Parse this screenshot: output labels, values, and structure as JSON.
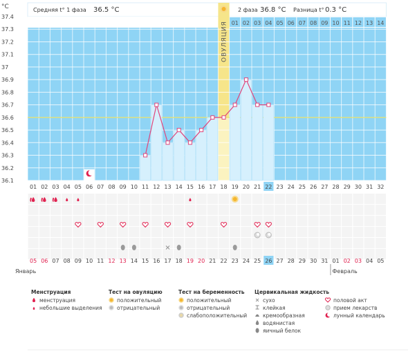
{
  "chart_data": {
    "type": "bar",
    "unit_label": "°C",
    "ylim": [
      36.1,
      37.4
    ],
    "y_ticks": [
      "37.4",
      "37.3",
      "37.2",
      "37.1",
      "37",
      "36.9",
      "36.8",
      "36.7",
      "36.6",
      "36.5",
      "36.4",
      "36.3",
      "36.2",
      "36.1"
    ],
    "y_tick_values": [
      37.4,
      37.3,
      37.2,
      37.1,
      37.0,
      36.9,
      36.8,
      36.7,
      36.6,
      36.5,
      36.4,
      36.3,
      36.2,
      36.1
    ],
    "phase1": {
      "label": "Средняя t° 1 фаза",
      "value": "36.5 °C"
    },
    "phase2": {
      "label": "2 фаза",
      "value": "36.8 °C"
    },
    "difference": {
      "label": "Разница t°",
      "value": "0.3 °C"
    },
    "ovulation_label": "ОВУЛЯЦИЯ",
    "ovulation_day": 18,
    "average_line": 36.6,
    "cycle_days": [
      "01",
      "02",
      "03",
      "04",
      "05",
      "06",
      "07",
      "08",
      "09",
      "10",
      "11",
      "12",
      "13",
      "14",
      "15",
      "16",
      "17",
      "18",
      "19",
      "20",
      "21",
      "22",
      "23",
      "24",
      "25",
      "26",
      "27",
      "28",
      "29",
      "30",
      "31",
      "32"
    ],
    "post_ovulation_days": [
      "01",
      "02",
      "03",
      "04",
      "05",
      "06",
      "07",
      "08",
      "09",
      "10",
      "11",
      "12",
      "13",
      "14"
    ],
    "temperatures": [
      {
        "day": 11,
        "value": 36.3
      },
      {
        "day": 12,
        "value": 36.7
      },
      {
        "day": 13,
        "value": 36.4
      },
      {
        "day": 14,
        "value": 36.5
      },
      {
        "day": 15,
        "value": 36.4
      },
      {
        "day": 16,
        "value": 36.5
      },
      {
        "day": 17,
        "value": 36.6
      },
      {
        "day": 18,
        "value": 36.6
      },
      {
        "day": 19,
        "value": 36.7
      },
      {
        "day": 20,
        "value": 36.9
      },
      {
        "day": 21,
        "value": 36.7
      },
      {
        "day": 22,
        "value": 36.7
      }
    ],
    "moon_day": 6,
    "current_day": 22,
    "calendar_dates": [
      "05",
      "06",
      "07",
      "08",
      "09",
      "10",
      "11",
      "12",
      "13",
      "14",
      "15",
      "16",
      "17",
      "18",
      "19",
      "20",
      "21",
      "22",
      "23",
      "24",
      "25",
      "26",
      "27",
      "28",
      "29",
      "30",
      "31",
      "01",
      "02",
      "03",
      "04",
      "05"
    ],
    "calendar_date_colors": [
      "red",
      "red",
      "gray",
      "gray",
      "gray",
      "gray",
      "gray",
      "red",
      "red",
      "gray",
      "gray",
      "gray",
      "gray",
      "gray",
      "red",
      "red",
      "gray",
      "gray",
      "gray",
      "gray",
      "gray",
      "gray",
      "gray",
      "gray",
      "gray",
      "gray",
      "gray",
      "gray",
      "red",
      "red",
      "gray",
      "gray"
    ],
    "month_left": "Январь",
    "month_right": "Февраль",
    "rows": {
      "menstruation": {
        "heavy": [
          1,
          2,
          3
        ],
        "light": [
          4,
          5,
          15
        ]
      },
      "ovulation_test_positive": [
        19
      ],
      "sex": [
        5,
        7,
        9,
        11,
        13,
        15,
        18,
        21,
        22
      ],
      "medication": [
        21,
        22
      ],
      "fluid_dry": [
        13
      ],
      "fluid_eggwhite": [
        9,
        10,
        14,
        19
      ]
    },
    "colors": {
      "sky": "#8fd4f5",
      "grid": "#ffffff",
      "bar_fill": "#d6f0fd",
      "bar_stroke": "#a9def8",
      "line": "#e0457b",
      "ovulation_band": "#f6e58a",
      "avg_line": "#e8e26a",
      "current_day": "#8fd4f5",
      "red": "#e0214f"
    }
  },
  "legend": {
    "groups": [
      {
        "title": "Менструация",
        "items": [
          {
            "icon": "drop-heavy-icon",
            "label": "менструация"
          },
          {
            "icon": "drop-light-icon",
            "label": "небольшие выделения"
          }
        ]
      },
      {
        "title": "Тест на овуляцию",
        "items": [
          {
            "icon": "sun-positive-icon",
            "label": "положительный"
          },
          {
            "icon": "sun-negative-icon",
            "label": "отрицательный"
          }
        ]
      },
      {
        "title": "Тест на беременность",
        "items": [
          {
            "icon": "sun-positive-icon",
            "label": "положительный"
          },
          {
            "icon": "sun-negative-icon",
            "label": "отрицательный"
          },
          {
            "icon": "sun-weak-icon",
            "label": "слабоположительный"
          }
        ]
      },
      {
        "title": "Цервикальная жидкость",
        "items": [
          {
            "icon": "cross-icon",
            "label": "сухо"
          },
          {
            "icon": "sticky-icon",
            "label": "клейкая"
          },
          {
            "icon": "creamy-icon",
            "label": "кремообразная"
          },
          {
            "icon": "watery-icon",
            "label": "водянистая"
          },
          {
            "icon": "eggwhite-icon",
            "label": "яичный белок"
          }
        ]
      },
      {
        "title": "",
        "items": [
          {
            "icon": "heart-icon",
            "label": "половой акт"
          },
          {
            "icon": "pill-icon",
            "label": "прием лекарств"
          },
          {
            "icon": "moon-icon",
            "label": "лунный календарь"
          }
        ]
      }
    ]
  }
}
